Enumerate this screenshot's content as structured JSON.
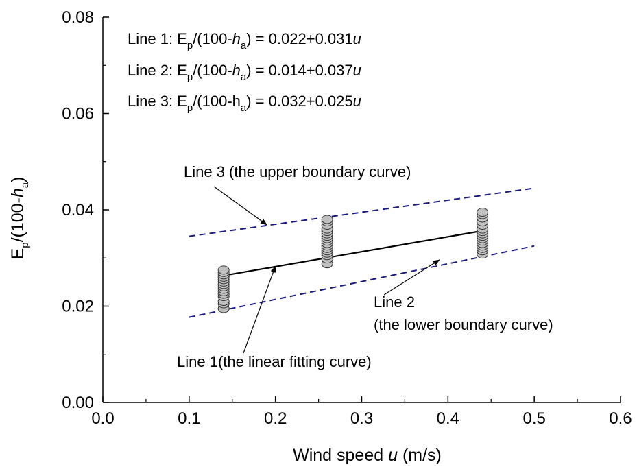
{
  "chart_data": {
    "type": "scatter",
    "xlabel": {
      "pre": "Wind speed ",
      "var": "u",
      "post": " (m/s)"
    },
    "ylabel": {
      "E": "E",
      "E_sub": "p",
      "mid": "/(100-",
      "h": "h",
      "h_sub": "a",
      "close": ")"
    },
    "xlim": [
      0.0,
      0.6
    ],
    "ylim": [
      0.0,
      0.08
    ],
    "x_ticks": [
      "0.0",
      "0.1",
      "0.2",
      "0.3",
      "0.4",
      "0.5",
      "0.6"
    ],
    "y_ticks": [
      "0.00",
      "0.02",
      "0.04",
      "0.06",
      "0.08"
    ],
    "x_tick_values": [
      0.0,
      0.1,
      0.2,
      0.3,
      0.4,
      0.5,
      0.6
    ],
    "y_tick_values": [
      0.0,
      0.02,
      0.04,
      0.06,
      0.08
    ],
    "grid": false,
    "equations": [
      {
        "prefix": "Line 1: E",
        "sub1": "p",
        "mid": "/(100-",
        "h": "h",
        "h_italic": true,
        "sub2": "a",
        "close": ") = ",
        "rhs": "0.022+0.031",
        "var": "u"
      },
      {
        "prefix": "Line 2: E",
        "sub1": "p",
        "mid": "/(100-",
        "h": "h",
        "h_italic": true,
        "sub2": "a",
        "close": ") = ",
        "rhs": "0.014+0.037",
        "var": "u"
      },
      {
        "prefix": "Line 3: E",
        "sub1": "p",
        "mid": "/(100-",
        "h": "h",
        "h_italic": false,
        "sub2": "a",
        "close": ") = ",
        "rhs": "0.032+0.025",
        "var": "u"
      }
    ],
    "lines": [
      {
        "name": "Line 1",
        "style": "solid",
        "color": "#000000",
        "intercept": 0.022,
        "slope": 0.031,
        "x_range": [
          0.14,
          0.44
        ]
      },
      {
        "name": "Line 2",
        "style": "dashed",
        "color": "#1a1a80",
        "intercept": 0.014,
        "slope": 0.037,
        "x_range": [
          0.1,
          0.5
        ]
      },
      {
        "name": "Line 3",
        "style": "dashed",
        "color": "#1a1a80",
        "intercept": 0.032,
        "slope": 0.025,
        "x_range": [
          0.1,
          0.5
        ]
      }
    ],
    "scatter": {
      "marker_fill": "#c0c0c0",
      "marker_stroke": "#333333",
      "groups": [
        {
          "x": 0.14,
          "y": [
            0.0195,
            0.0205,
            0.021,
            0.022,
            0.0225,
            0.023,
            0.0235,
            0.024,
            0.0245,
            0.025,
            0.0255,
            0.026,
            0.0265,
            0.027,
            0.0275
          ]
        },
        {
          "x": 0.26,
          "y": [
            0.0288,
            0.0298,
            0.0305,
            0.031,
            0.0315,
            0.032,
            0.0325,
            0.033,
            0.0335,
            0.034,
            0.0345,
            0.035,
            0.0355,
            0.036,
            0.0368,
            0.0375,
            0.038
          ]
        },
        {
          "x": 0.44,
          "y": [
            0.0308,
            0.0315,
            0.032,
            0.0325,
            0.033,
            0.0335,
            0.034,
            0.0345,
            0.035,
            0.0355,
            0.036,
            0.0368,
            0.0375,
            0.0383,
            0.039,
            0.0395
          ]
        }
      ]
    },
    "annotations": [
      {
        "lines": [
          "Line 3 (the upper boundary curve)"
        ],
        "target_x": 0.19,
        "target_y": 0.0369
      },
      {
        "lines": [
          "Line 2",
          "(the lower boundary curve)"
        ],
        "target_x": 0.39,
        "target_y": 0.0296
      },
      {
        "lines": [
          "Line 1(the linear fitting curve)"
        ],
        "target_x": 0.2,
        "target_y": 0.0283
      }
    ]
  }
}
